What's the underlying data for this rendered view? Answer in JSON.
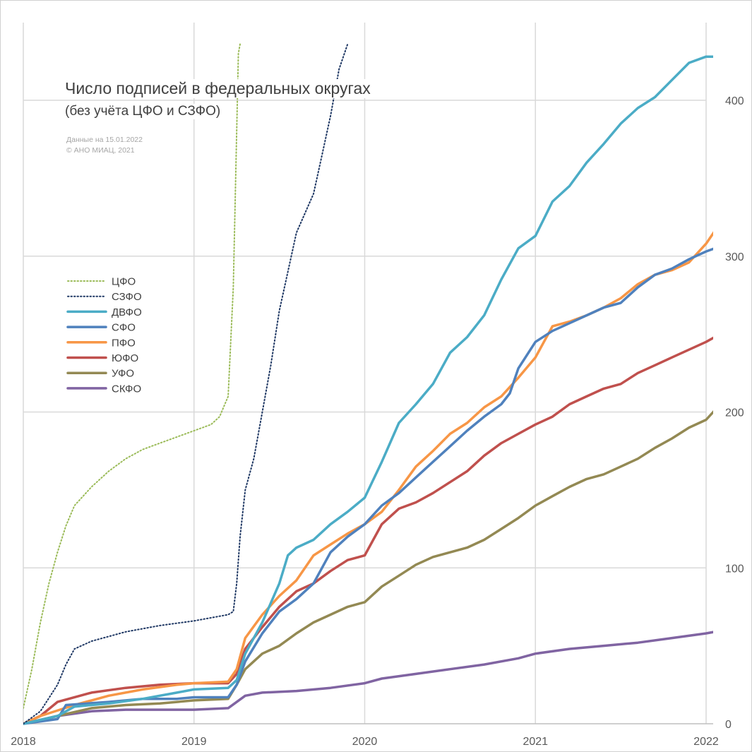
{
  "chart_data": {
    "type": "line",
    "title": "Число подписей в федеральных округах",
    "subtitle": "(без учёта ЦФО и СЗФО)",
    "notes": [
      "Данные на 15.01.2022",
      "© АНО МИАЦ, 2021"
    ],
    "xlim": [
      2018.0,
      2022.1
    ],
    "ylim": [
      0,
      435
    ],
    "x_ticks": [
      2018,
      2019,
      2020,
      2021,
      2022
    ],
    "x_tick_labels": [
      "2018",
      "2019",
      "2020",
      "2021",
      "2022"
    ],
    "y_ticks": [
      0,
      100,
      200,
      300,
      400
    ],
    "y_tick_labels": [
      "0",
      "100",
      "200",
      "300",
      "400"
    ],
    "y_axis_side": "right",
    "grid": true,
    "legend_position": "left",
    "series": [
      {
        "name": "ЦФО",
        "color": "#9bbb59",
        "style": "dotted",
        "x": [
          2018.0,
          2018.05,
          2018.1,
          2018.15,
          2018.2,
          2018.25,
          2018.3,
          2018.4,
          2018.5,
          2018.6,
          2018.7,
          2018.8,
          2018.9,
          2019.0,
          2019.1,
          2019.15,
          2019.2,
          2019.23,
          2019.25,
          2019.26,
          2019.27
        ],
        "y": [
          10,
          35,
          65,
          90,
          110,
          127,
          140,
          152,
          162,
          170,
          176,
          180,
          184,
          188,
          192,
          197,
          210,
          280,
          380,
          430,
          436
        ]
      },
      {
        "name": "СЗФО",
        "color": "#1f3864",
        "style": "dotted",
        "x": [
          2018.0,
          2018.1,
          2018.2,
          2018.25,
          2018.3,
          2018.4,
          2018.5,
          2018.6,
          2018.8,
          2019.0,
          2019.1,
          2019.2,
          2019.23,
          2019.25,
          2019.27,
          2019.3,
          2019.35,
          2019.4,
          2019.45,
          2019.5,
          2019.55,
          2019.6,
          2019.7,
          2019.75,
          2019.8,
          2019.85,
          2019.9
        ],
        "y": [
          0,
          8,
          25,
          38,
          48,
          53,
          56,
          59,
          63,
          66,
          68,
          70,
          72,
          90,
          120,
          150,
          170,
          200,
          230,
          265,
          290,
          315,
          340,
          365,
          390,
          420,
          436
        ]
      },
      {
        "name": "ДВФО",
        "color": "#4bacc6",
        "style": "solid",
        "x": [
          2018.0,
          2018.2,
          2018.3,
          2018.5,
          2018.7,
          2018.9,
          2019.0,
          2019.2,
          2019.25,
          2019.3,
          2019.4,
          2019.5,
          2019.55,
          2019.6,
          2019.7,
          2019.8,
          2019.9,
          2020.0,
          2020.1,
          2020.2,
          2020.3,
          2020.4,
          2020.5,
          2020.6,
          2020.7,
          2020.8,
          2020.9,
          2021.0,
          2021.1,
          2021.2,
          2021.3,
          2021.4,
          2021.5,
          2021.6,
          2021.7,
          2021.8,
          2021.9,
          2022.0,
          2022.05
        ],
        "y": [
          0,
          5,
          11,
          13,
          16,
          20,
          22,
          23,
          28,
          45,
          65,
          90,
          108,
          113,
          118,
          128,
          136,
          145,
          168,
          193,
          205,
          218,
          238,
          248,
          262,
          285,
          305,
          313,
          335,
          345,
          360,
          372,
          385,
          395,
          402,
          413,
          424,
          428,
          428
        ]
      },
      {
        "name": "СФО",
        "color": "#4f81bd",
        "style": "solid",
        "x": [
          2018.0,
          2018.2,
          2018.25,
          2018.5,
          2018.7,
          2018.9,
          2019.0,
          2019.2,
          2019.25,
          2019.3,
          2019.4,
          2019.5,
          2019.6,
          2019.7,
          2019.8,
          2019.9,
          2020.0,
          2020.1,
          2020.2,
          2020.3,
          2020.4,
          2020.5,
          2020.6,
          2020.7,
          2020.8,
          2020.85,
          2020.9,
          2021.0,
          2021.1,
          2021.2,
          2021.3,
          2021.4,
          2021.5,
          2021.6,
          2021.7,
          2021.8,
          2021.9,
          2022.0,
          2022.05
        ],
        "y": [
          0,
          3,
          12,
          14,
          16,
          16,
          17,
          17,
          25,
          40,
          58,
          72,
          80,
          90,
          110,
          120,
          128,
          140,
          148,
          158,
          168,
          178,
          188,
          197,
          205,
          212,
          228,
          245,
          252,
          257,
          262,
          267,
          270,
          280,
          288,
          292,
          298,
          303,
          305
        ]
      },
      {
        "name": "ПФО",
        "color": "#f79646",
        "style": "solid",
        "x": [
          2018.0,
          2018.1,
          2018.3,
          2018.5,
          2018.7,
          2018.9,
          2019.0,
          2019.2,
          2019.25,
          2019.3,
          2019.4,
          2019.5,
          2019.6,
          2019.7,
          2019.8,
          2019.9,
          2020.0,
          2020.1,
          2020.2,
          2020.3,
          2020.4,
          2020.5,
          2020.6,
          2020.7,
          2020.8,
          2020.9,
          2021.0,
          2021.05,
          2021.1,
          2021.2,
          2021.3,
          2021.4,
          2021.5,
          2021.6,
          2021.7,
          2021.8,
          2021.9,
          2022.0,
          2022.05
        ],
        "y": [
          0,
          5,
          12,
          18,
          22,
          25,
          26,
          27,
          35,
          55,
          70,
          82,
          92,
          108,
          115,
          122,
          128,
          136,
          150,
          165,
          175,
          186,
          193,
          203,
          210,
          222,
          235,
          245,
          255,
          258,
          262,
          267,
          273,
          282,
          288,
          291,
          296,
          308,
          316
        ]
      },
      {
        "name": "ЮФО",
        "color": "#c0504d",
        "style": "solid",
        "x": [
          2018.0,
          2018.1,
          2018.2,
          2018.4,
          2018.6,
          2018.8,
          2019.0,
          2019.2,
          2019.25,
          2019.3,
          2019.4,
          2019.5,
          2019.6,
          2019.7,
          2019.8,
          2019.9,
          2020.0,
          2020.1,
          2020.2,
          2020.3,
          2020.4,
          2020.5,
          2020.6,
          2020.7,
          2020.8,
          2020.9,
          2021.0,
          2021.1,
          2021.2,
          2021.3,
          2021.4,
          2021.5,
          2021.6,
          2021.7,
          2021.8,
          2021.9,
          2022.0,
          2022.05
        ],
        "y": [
          0,
          5,
          14,
          20,
          23,
          25,
          26,
          26,
          32,
          48,
          62,
          75,
          85,
          90,
          98,
          105,
          108,
          128,
          138,
          142,
          148,
          155,
          162,
          172,
          180,
          186,
          192,
          197,
          205,
          210,
          215,
          218,
          225,
          230,
          235,
          240,
          245,
          248
        ]
      },
      {
        "name": "УФО",
        "color": "#938953",
        "style": "solid",
        "x": [
          2018.0,
          2018.2,
          2018.4,
          2018.6,
          2018.8,
          2019.0,
          2019.2,
          2019.25,
          2019.3,
          2019.4,
          2019.5,
          2019.6,
          2019.7,
          2019.8,
          2019.9,
          2020.0,
          2020.1,
          2020.2,
          2020.3,
          2020.4,
          2020.5,
          2020.6,
          2020.7,
          2020.8,
          2020.9,
          2021.0,
          2021.1,
          2021.2,
          2021.3,
          2021.4,
          2021.5,
          2021.6,
          2021.7,
          2021.8,
          2021.9,
          2022.0,
          2022.05
        ],
        "y": [
          0,
          5,
          10,
          12,
          13,
          15,
          16,
          25,
          35,
          45,
          50,
          58,
          65,
          70,
          75,
          78,
          88,
          95,
          102,
          107,
          110,
          113,
          118,
          125,
          132,
          140,
          146,
          152,
          157,
          160,
          165,
          170,
          177,
          183,
          190,
          195,
          201
        ]
      },
      {
        "name": "СКФО",
        "color": "#8064a2",
        "style": "solid",
        "x": [
          2018.0,
          2018.2,
          2018.4,
          2018.6,
          2018.8,
          2019.0,
          2019.2,
          2019.3,
          2019.4,
          2019.6,
          2019.8,
          2020.0,
          2020.1,
          2020.3,
          2020.5,
          2020.7,
          2020.9,
          2021.0,
          2021.2,
          2021.4,
          2021.6,
          2021.8,
          2022.0,
          2022.05
        ],
        "y": [
          0,
          5,
          8,
          9,
          9,
          9,
          10,
          18,
          20,
          21,
          23,
          26,
          29,
          32,
          35,
          38,
          42,
          45,
          48,
          50,
          52,
          55,
          58,
          59
        ]
      }
    ]
  }
}
